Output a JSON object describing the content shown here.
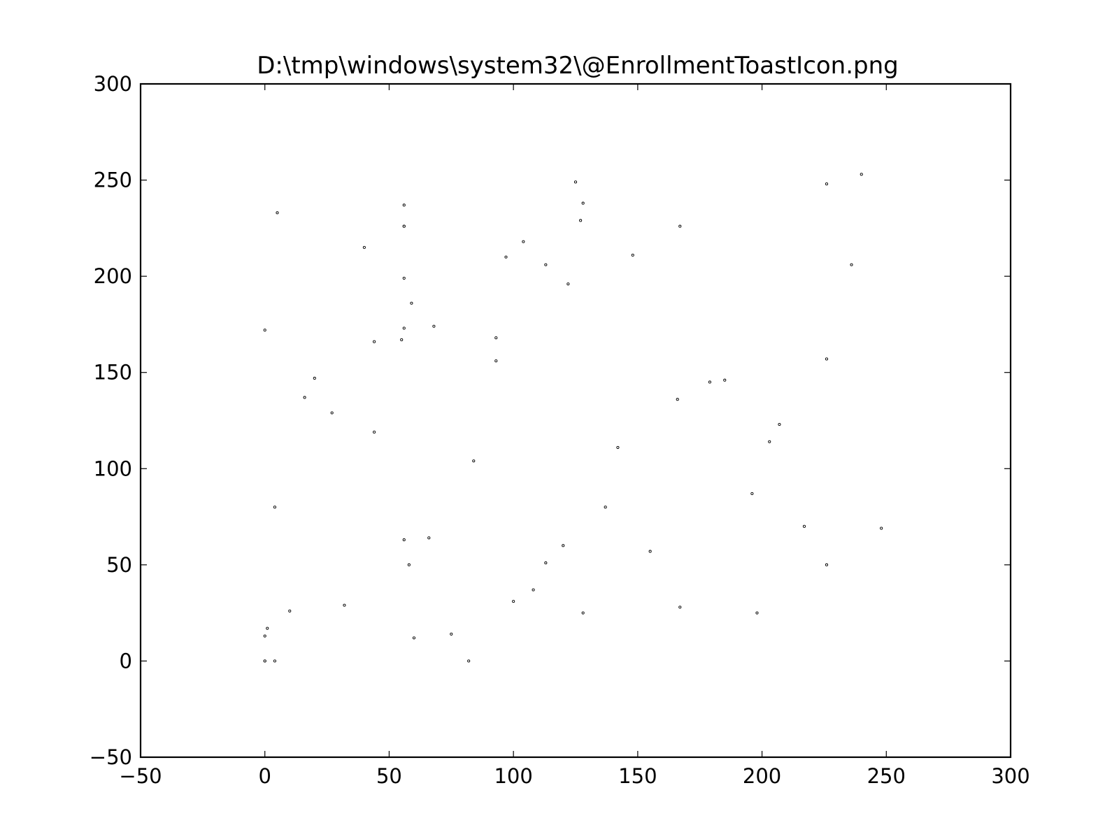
{
  "chart_data": {
    "type": "scatter",
    "title": "D:\\tmp\\windows\\system32\\@EnrollmentToastIcon.png",
    "xlabel": "",
    "ylabel": "",
    "xlim": [
      -50,
      300
    ],
    "ylim": [
      -50,
      300
    ],
    "xticks": [
      -50,
      0,
      50,
      100,
      150,
      200,
      250,
      300
    ],
    "yticks": [
      -50,
      0,
      50,
      100,
      150,
      200,
      250,
      300
    ],
    "xtick_labels": [
      "−50",
      "0",
      "50",
      "100",
      "150",
      "200",
      "250",
      "300"
    ],
    "ytick_labels": [
      "−50",
      "0",
      "50",
      "100",
      "150",
      "200",
      "250",
      "300"
    ],
    "grid": false,
    "marker_color": "#000000",
    "marker_fill": "#ffffff",
    "series": [
      {
        "points": [
          [
            0,
            0
          ],
          [
            0,
            0
          ],
          [
            4,
            0
          ],
          [
            0,
            13
          ],
          [
            1,
            17
          ],
          [
            10,
            26
          ],
          [
            4,
            80
          ],
          [
            0,
            172
          ],
          [
            5,
            233
          ],
          [
            16,
            137
          ],
          [
            20,
            147
          ],
          [
            27,
            129
          ],
          [
            32,
            29
          ],
          [
            40,
            215
          ],
          [
            44,
            166
          ],
          [
            44,
            119
          ],
          [
            55,
            167
          ],
          [
            56,
            173
          ],
          [
            56,
            199
          ],
          [
            56,
            226
          ],
          [
            56,
            226
          ],
          [
            56,
            237
          ],
          [
            59,
            186
          ],
          [
            68,
            174
          ],
          [
            56,
            63
          ],
          [
            58,
            50
          ],
          [
            60,
            12
          ],
          [
            66,
            64
          ],
          [
            75,
            14
          ],
          [
            82,
            0
          ],
          [
            84,
            104
          ],
          [
            93,
            168
          ],
          [
            93,
            156
          ],
          [
            97,
            210
          ],
          [
            100,
            31
          ],
          [
            104,
            218
          ],
          [
            108,
            37
          ],
          [
            113,
            51
          ],
          [
            113,
            206
          ],
          [
            120,
            60
          ],
          [
            122,
            196
          ],
          [
            125,
            249
          ],
          [
            127,
            229
          ],
          [
            128,
            238
          ],
          [
            128,
            25
          ],
          [
            137,
            80
          ],
          [
            142,
            111
          ],
          [
            148,
            211
          ],
          [
            155,
            57
          ],
          [
            166,
            136
          ],
          [
            167,
            226
          ],
          [
            167,
            28
          ],
          [
            179,
            145
          ],
          [
            185,
            146
          ],
          [
            196,
            87
          ],
          [
            198,
            25
          ],
          [
            203,
            114
          ],
          [
            207,
            123
          ],
          [
            217,
            70
          ],
          [
            226,
            248
          ],
          [
            226,
            157
          ],
          [
            226,
            50
          ],
          [
            236,
            206
          ],
          [
            240,
            253
          ],
          [
            248,
            69
          ]
        ]
      }
    ]
  }
}
